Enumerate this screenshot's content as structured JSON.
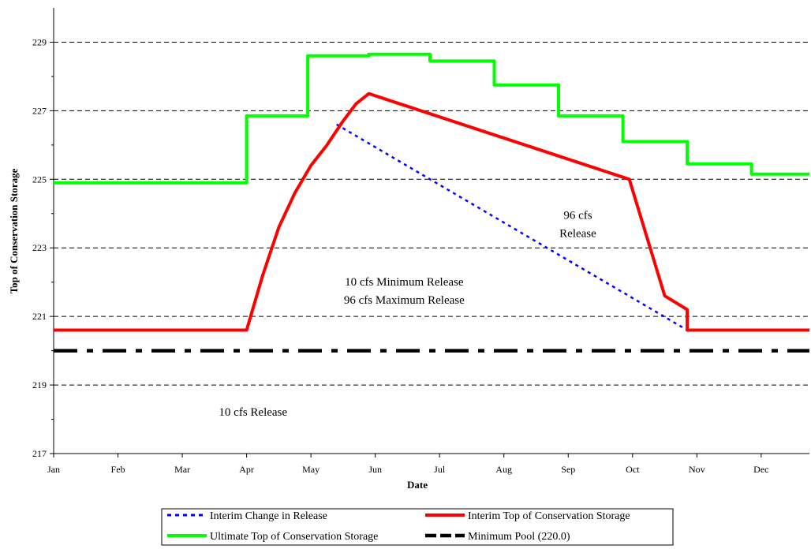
{
  "chart_data": {
    "type": "line",
    "title": "",
    "xlabel": "Date",
    "ylabel": "Top of Conservation Storage",
    "ylim": [
      217,
      230
    ],
    "xlim": [
      0,
      11.75
    ],
    "grid": "horizontal dashed",
    "legend_position": "bottom",
    "x_tick_labels": [
      "Jan",
      "Feb",
      "Mar",
      "Apr",
      "May",
      "Jun",
      "Jul",
      "Aug",
      "Sep",
      "Oct",
      "Nov",
      "Dec"
    ],
    "y_tick_labels": [
      "217",
      "219",
      "221",
      "223",
      "225",
      "227",
      "229"
    ],
    "y_ticks": [
      217,
      219,
      221,
      223,
      225,
      227,
      229
    ],
    "series": [
      {
        "name": "Interim Change in Release",
        "color": "#0000ff",
        "style": "dotted",
        "points": [
          [
            4.4,
            226.6
          ],
          [
            9.85,
            220.6
          ]
        ]
      },
      {
        "name": "Interim Top of Conservation Storage",
        "color": "#ff0000",
        "style": "solid",
        "points": [
          [
            0,
            220.6
          ],
          [
            3.0,
            220.6
          ],
          [
            3.25,
            222.2
          ],
          [
            3.5,
            223.6
          ],
          [
            3.75,
            224.6
          ],
          [
            4.0,
            225.4
          ],
          [
            4.25,
            226.0
          ],
          [
            4.5,
            226.7
          ],
          [
            4.7,
            227.2
          ],
          [
            4.9,
            227.5
          ],
          [
            8.95,
            225.0
          ],
          [
            9.5,
            221.6
          ],
          [
            9.85,
            221.2
          ],
          [
            9.85,
            220.6
          ],
          [
            11.75,
            220.6
          ]
        ]
      },
      {
        "name": "Ultimate Top of Conservation Storage",
        "color": "#00ff00",
        "style": "step",
        "points": [
          [
            0,
            224.9
          ],
          [
            3.0,
            224.9
          ],
          [
            3.0,
            226.85
          ],
          [
            3.95,
            226.85
          ],
          [
            3.95,
            228.6
          ],
          [
            4.9,
            228.6
          ],
          [
            4.9,
            228.65
          ],
          [
            5.85,
            228.65
          ],
          [
            5.85,
            228.45
          ],
          [
            6.85,
            228.45
          ],
          [
            6.85,
            227.75
          ],
          [
            7.85,
            227.75
          ],
          [
            7.85,
            226.85
          ],
          [
            8.85,
            226.85
          ],
          [
            8.85,
            226.1
          ],
          [
            9.85,
            226.1
          ],
          [
            9.85,
            225.45
          ],
          [
            10.85,
            225.45
          ],
          [
            10.85,
            225.15
          ],
          [
            11.75,
            225.15
          ]
        ]
      },
      {
        "name": "Minimum Pool (220.0)",
        "color": "#000000",
        "style": "dash-dot",
        "points": [
          [
            0,
            220.0
          ],
          [
            11.75,
            220.0
          ]
        ]
      }
    ],
    "annotations": [
      {
        "lines": [
          "96 cfs",
          "Release"
        ],
        "x": 8.15,
        "y": 223.85
      },
      {
        "lines": [
          "10 cfs Minimum Release",
          "96 cfs Maximum Release"
        ],
        "x": 5.45,
        "y": 221.9
      },
      {
        "lines": [
          "10 cfs Release"
        ],
        "x": 3.1,
        "y": 218.1
      }
    ]
  }
}
